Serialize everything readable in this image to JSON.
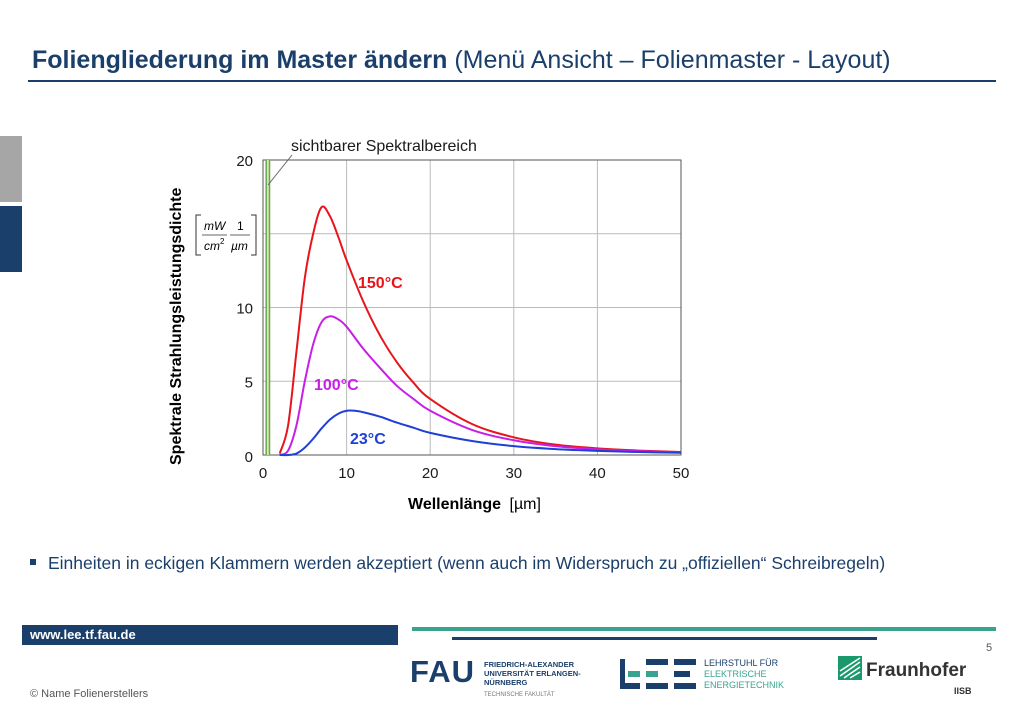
{
  "header": {
    "title_bold": "Foliengliederung im Master ändern",
    "title_rest": "(Menü Ansicht – Folienmaster - Layout)"
  },
  "chart_data": {
    "type": "line",
    "annotation": "sichtbarer Spektralbereich",
    "xlabel_main": "Wellenlänge",
    "xlabel_unit": "[µm]",
    "ylabel": "Spektrale Strahlungsleistungsdichte",
    "yunit_num1": "mW",
    "yunit_den1": "cm",
    "yunit_exp": "2",
    "yunit_num2": "1",
    "yunit_den2": "µm",
    "xlim": [
      0,
      50
    ],
    "ylim": [
      0,
      20
    ],
    "x_ticks": [
      "0",
      "10",
      "20",
      "30",
      "40",
      "50"
    ],
    "y_ticks": [
      "0",
      "5",
      "10",
      "20"
    ],
    "grid": true,
    "visible_band_um": [
      0.38,
      0.78
    ],
    "series": [
      {
        "name": "150°C",
        "color": "#e8141b",
        "x": [
          2,
          3,
          4,
          5,
          6,
          7,
          8,
          9,
          10,
          12,
          14,
          16,
          18,
          20,
          25,
          30,
          35,
          40,
          45,
          50
        ],
        "y": [
          0.1,
          2.0,
          7.0,
          12.0,
          15.0,
          16.8,
          16.2,
          14.8,
          13.2,
          10.4,
          8.1,
          6.3,
          4.9,
          3.8,
          2.1,
          1.2,
          0.7,
          0.45,
          0.3,
          0.2
        ]
      },
      {
        "name": "100°C",
        "color": "#c71fe6",
        "x": [
          2,
          3,
          4,
          5,
          6,
          7,
          8,
          9,
          10,
          12,
          14,
          16,
          18,
          20,
          25,
          30,
          35,
          40,
          45,
          50
        ],
        "y": [
          0.0,
          0.3,
          2.0,
          5.0,
          7.5,
          9.0,
          9.4,
          9.2,
          8.7,
          7.2,
          5.9,
          4.7,
          3.8,
          3.0,
          1.7,
          1.0,
          0.6,
          0.38,
          0.26,
          0.18
        ]
      },
      {
        "name": "23°C",
        "color": "#1f3fd6",
        "x": [
          2,
          3,
          4,
          5,
          6,
          7,
          8,
          9,
          10,
          11,
          12,
          14,
          16,
          18,
          20,
          25,
          30,
          35,
          40,
          45,
          50
        ],
        "y": [
          0.0,
          0.0,
          0.1,
          0.5,
          1.1,
          1.8,
          2.4,
          2.8,
          3.0,
          3.0,
          2.9,
          2.6,
          2.2,
          1.85,
          1.5,
          0.95,
          0.6,
          0.4,
          0.28,
          0.2,
          0.15
        ]
      }
    ]
  },
  "bullet": "Einheiten in eckigen Klammern werden akzeptiert (wenn auch im Widerspruch zu „offiziellen“ Schreibregeln)",
  "footer": {
    "url": "www.lee.tf.fau.de",
    "page_number": "5",
    "copyright": "© Name Folienerstellers"
  },
  "logos": {
    "fau_big": "FAU",
    "fau_small": "FRIEDRICH-ALEXANDER UNIVERSITÄT ERLANGEN-NÜRNBERG",
    "fau_sub": "TECHNISCHE FAKULTÄT",
    "lee_line1": "LEHRSTUHL FÜR",
    "lee_line2": "ELEKTRISCHE",
    "lee_line3": "ENERGIETECHNIK",
    "fh_name": "Fraunhofer",
    "fh_sub": "IISB"
  },
  "colors": {
    "navy": "#1b3f6b",
    "teal": "#3aa38f",
    "sidebar_gray": "#a6a6a6"
  }
}
